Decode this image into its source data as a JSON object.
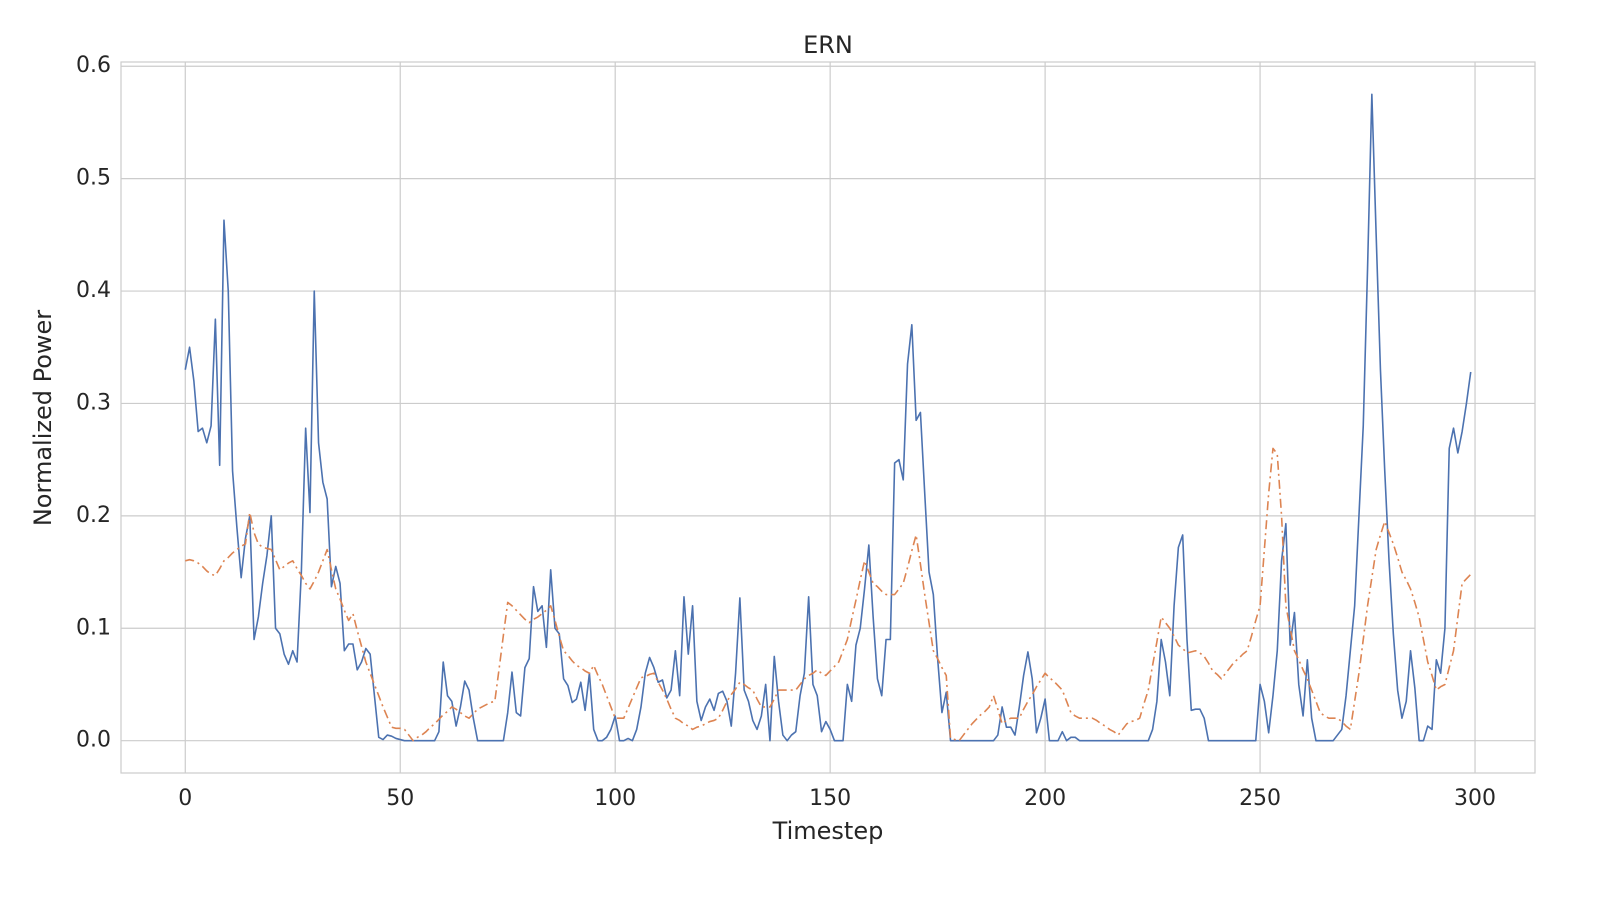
{
  "chart_data": {
    "type": "line",
    "title": "ERN",
    "x_label": "Timestep",
    "y_label": "Normalized Power",
    "x": [
      0,
      1,
      2,
      3,
      4,
      5,
      6,
      7,
      8,
      9,
      10,
      11,
      12,
      13,
      14,
      15,
      16,
      17,
      18,
      19,
      20,
      21,
      22,
      23,
      24,
      25,
      26,
      27,
      28,
      29,
      30,
      31,
      32,
      33,
      34,
      35,
      36,
      37,
      38,
      39,
      40,
      41,
      42,
      43,
      44,
      45,
      46,
      47,
      48,
      49,
      50,
      51,
      52,
      53,
      54,
      55,
      56,
      57,
      58,
      59,
      60,
      61,
      62,
      63,
      64,
      65,
      66,
      67,
      68,
      69,
      70,
      71,
      72,
      73,
      74,
      75,
      76,
      77,
      78,
      79,
      80,
      81,
      82,
      83,
      84,
      85,
      86,
      87,
      88,
      89,
      90,
      91,
      92,
      93,
      94,
      95,
      96,
      97,
      98,
      99,
      100,
      101,
      102,
      103,
      104,
      105,
      106,
      107,
      108,
      109,
      110,
      111,
      112,
      113,
      114,
      115,
      116,
      117,
      118,
      119,
      120,
      121,
      122,
      123,
      124,
      125,
      126,
      127,
      128,
      129,
      130,
      131,
      132,
      133,
      134,
      135,
      136,
      137,
      138,
      139,
      140,
      141,
      142,
      143,
      144,
      145,
      146,
      147,
      148,
      149,
      150,
      151,
      152,
      153,
      154,
      155,
      156,
      157,
      158,
      159,
      160,
      161,
      162,
      163,
      164,
      165,
      166,
      167,
      168,
      169,
      170,
      171,
      172,
      173,
      174,
      175,
      176,
      177,
      178,
      179,
      180,
      181,
      182,
      183,
      184,
      185,
      186,
      187,
      188,
      189,
      190,
      191,
      192,
      193,
      194,
      195,
      196,
      197,
      198,
      199,
      200,
      201,
      202,
      203,
      204,
      205,
      206,
      207,
      208,
      209,
      210,
      211,
      212,
      213,
      214,
      215,
      216,
      217,
      218,
      219,
      220,
      221,
      222,
      223,
      224,
      225,
      226,
      227,
      228,
      229,
      230,
      231,
      232,
      233,
      234,
      235,
      236,
      237,
      238,
      239,
      240,
      241,
      242,
      243,
      244,
      245,
      246,
      247,
      248,
      249,
      250,
      251,
      252,
      253,
      254,
      255,
      256,
      257,
      258,
      259,
      260,
      261,
      262,
      263,
      264,
      265,
      266,
      267,
      268,
      269,
      270,
      271,
      272,
      273,
      274,
      275,
      276,
      277,
      278,
      279,
      280,
      281,
      282,
      283,
      284,
      285,
      286,
      287,
      288,
      289,
      290,
      291,
      292,
      293,
      294,
      295,
      296,
      297,
      298,
      299
    ],
    "series": [
      {
        "color": "#4c72b0",
        "linestyle": "solid",
        "values": [
          0.33,
          0.35,
          0.32,
          0.275,
          0.278,
          0.265,
          0.28,
          0.375,
          0.245,
          0.463,
          0.4,
          0.24,
          0.19,
          0.145,
          0.18,
          0.2,
          0.09,
          0.11,
          0.14,
          0.165,
          0.2,
          0.1,
          0.095,
          0.077,
          0.068,
          0.08,
          0.07,
          0.15,
          0.278,
          0.203,
          0.4,
          0.265,
          0.23,
          0.215,
          0.137,
          0.155,
          0.14,
          0.08,
          0.086,
          0.086,
          0.063,
          0.07,
          0.082,
          0.077,
          0.04,
          0.003,
          0.001,
          0.005,
          0.004,
          0.002,
          0.001,
          0,
          0,
          0,
          0,
          0,
          0,
          0,
          0,
          0.008,
          0.07,
          0.04,
          0.035,
          0.013,
          0.03,
          0.053,
          0.045,
          0.02,
          0,
          0,
          0,
          0,
          0,
          0,
          0,
          0.025,
          0.061,
          0.025,
          0.022,
          0.065,
          0.073,
          0.137,
          0.115,
          0.12,
          0.083,
          0.152,
          0.1,
          0.095,
          0.055,
          0.049,
          0.034,
          0.037,
          0.052,
          0.027,
          0.06,
          0.01,
          0,
          0,
          0.003,
          0.01,
          0.022,
          0,
          0,
          0.002,
          0,
          0.01,
          0.03,
          0.06,
          0.074,
          0.065,
          0.052,
          0.054,
          0.038,
          0.045,
          0.08,
          0.04,
          0.128,
          0.077,
          0.12,
          0.035,
          0.018,
          0.03,
          0.037,
          0.027,
          0.042,
          0.044,
          0.035,
          0.013,
          0.06,
          0.127,
          0.045,
          0.035,
          0.018,
          0.01,
          0.022,
          0.05,
          0,
          0.075,
          0.035,
          0.005,
          0,
          0.005,
          0.008,
          0.04,
          0.06,
          0.128,
          0.05,
          0.04,
          0.008,
          0.017,
          0.01,
          0,
          0,
          0,
          0.05,
          0.035,
          0.085,
          0.1,
          0.135,
          0.174,
          0.11,
          0.055,
          0.04,
          0.09,
          0.09,
          0.247,
          0.25,
          0.232,
          0.335,
          0.37,
          0.285,
          0.292,
          0.22,
          0.15,
          0.13,
          0.073,
          0.025,
          0.043,
          0,
          0,
          0,
          0,
          0,
          0,
          0,
          0,
          0,
          0,
          0,
          0.005,
          0.03,
          0.012,
          0.012,
          0.005,
          0.03,
          0.058,
          0.079,
          0.055,
          0.007,
          0.02,
          0.037,
          0,
          0,
          0,
          0.008,
          0,
          0.003,
          0.003,
          0,
          0,
          0,
          0,
          0,
          0,
          0,
          0,
          0,
          0,
          0,
          0,
          0,
          0,
          0,
          0,
          0,
          0.01,
          0.035,
          0.09,
          0.07,
          0.04,
          0.12,
          0.172,
          0.183,
          0.09,
          0.027,
          0.028,
          0.028,
          0.02,
          0,
          0,
          0,
          0,
          0,
          0,
          0,
          0,
          0,
          0,
          0,
          0,
          0.05,
          0.035,
          0.007,
          0.04,
          0.08,
          0.16,
          0.193,
          0.085,
          0.114,
          0.05,
          0.022,
          0.072,
          0.02,
          0,
          0,
          0,
          0,
          0,
          0.005,
          0.01,
          0.04,
          0.08,
          0.12,
          0.2,
          0.28,
          0.42,
          0.575,
          0.45,
          0.33,
          0.24,
          0.16,
          0.095,
          0.045,
          0.02,
          0.035,
          0.08,
          0.047,
          0,
          0,
          0.013,
          0.01,
          0.072,
          0.06,
          0.1,
          0.26,
          0.278,
          0.256,
          0.275,
          0.3,
          0.328
        ]
      },
      {
        "color": "#dd8452",
        "linestyle": "dashdot",
        "values": [
          0.16,
          0.161,
          0.16,
          0.158,
          0.155,
          0.151,
          0.148,
          0.147,
          0.153,
          0.16,
          0.163,
          0.167,
          0.17,
          0.173,
          0.175,
          0.203,
          0.185,
          0.175,
          0.172,
          0.171,
          0.17,
          0.161,
          0.152,
          0.155,
          0.158,
          0.16,
          0.153,
          0.147,
          0.14,
          0.135,
          0.142,
          0.15,
          0.16,
          0.17,
          0.152,
          0.135,
          0.126,
          0.116,
          0.107,
          0.113,
          0.098,
          0.084,
          0.07,
          0.06,
          0.05,
          0.04,
          0.03,
          0.021,
          0.012,
          0.011,
          0.011,
          0.01,
          0.005,
          0,
          0.003,
          0.005,
          0.008,
          0.012,
          0.015,
          0.019,
          0.023,
          0.026,
          0.03,
          0.028,
          0.025,
          0.022,
          0.02,
          0.024,
          0.028,
          0.03,
          0.032,
          0.034,
          0.035,
          0.064,
          0.094,
          0.123,
          0.12,
          0.116,
          0.112,
          0.108,
          0.105,
          0.108,
          0.11,
          0.113,
          0.116,
          0.12,
          0.107,
          0.093,
          0.08,
          0.076,
          0.071,
          0.067,
          0.065,
          0.062,
          0.06,
          0.067,
          0.058,
          0.05,
          0.04,
          0.03,
          0.02,
          0.02,
          0.02,
          0.029,
          0.038,
          0.047,
          0.056,
          0.057,
          0.059,
          0.06,
          0.052,
          0.045,
          0.037,
          0.028,
          0.02,
          0.018,
          0.015,
          0.013,
          0.01,
          0.012,
          0.013,
          0.015,
          0.017,
          0.018,
          0.02,
          0.027,
          0.035,
          0.041,
          0.046,
          0.052,
          0.05,
          0.047,
          0.045,
          0.037,
          0.03,
          0.03,
          0.03,
          0.037,
          0.045,
          0.045,
          0.045,
          0.045,
          0.045,
          0.05,
          0.055,
          0.058,
          0.06,
          0.063,
          0.06,
          0.058,
          0.062,
          0.066,
          0.07,
          0.08,
          0.09,
          0.108,
          0.125,
          0.143,
          0.16,
          0.15,
          0.14,
          0.137,
          0.133,
          0.13,
          0.13,
          0.13,
          0.135,
          0.14,
          0.154,
          0.169,
          0.183,
          0.157,
          0.13,
          0.105,
          0.08,
          0.073,
          0.065,
          0.058,
          0.002,
          0.001,
          0,
          0.005,
          0.01,
          0.015,
          0.019,
          0.023,
          0.026,
          0.03,
          0.04,
          0.028,
          0.015,
          0.018,
          0.02,
          0.02,
          0.02,
          0.028,
          0.035,
          0.041,
          0.048,
          0.054,
          0.06,
          0.056,
          0.053,
          0.049,
          0.045,
          0.035,
          0.025,
          0.022,
          0.02,
          0.02,
          0.02,
          0.02,
          0.018,
          0.015,
          0.013,
          0.01,
          0.008,
          0.005,
          0.01,
          0.015,
          0.017,
          0.018,
          0.02,
          0.033,
          0.045,
          0.067,
          0.088,
          0.11,
          0.105,
          0.1,
          0.093,
          0.085,
          0.082,
          0.078,
          0.079,
          0.08,
          0.078,
          0.075,
          0.069,
          0.062,
          0.059,
          0.055,
          0.06,
          0.065,
          0.07,
          0.073,
          0.077,
          0.08,
          0.093,
          0.107,
          0.12,
          0.17,
          0.22,
          0.26,
          0.255,
          0.2,
          0.12,
          0.1,
          0.08,
          0.072,
          0.063,
          0.055,
          0.045,
          0.035,
          0.025,
          0.022,
          0.02,
          0.02,
          0.02,
          0.017,
          0.013,
          0.01,
          0.035,
          0.06,
          0.09,
          0.12,
          0.145,
          0.17,
          0.183,
          0.195,
          0.185,
          0.175,
          0.163,
          0.15,
          0.143,
          0.135,
          0.123,
          0.11,
          0.09,
          0.07,
          0.058,
          0.045,
          0.048,
          0.05,
          0.065,
          0.08,
          0.11,
          0.14,
          0.144,
          0.148
        ]
      }
    ],
    "xlim": [
      -14.95,
      313.95
    ],
    "xticks": [
      0,
      50,
      100,
      150,
      200,
      250,
      300
    ],
    "ylim": [
      -0.02875,
      0.60375
    ],
    "yticks": [
      {
        "value": 0,
        "label": "0.0"
      },
      0.1,
      0.2,
      0.3,
      0.4,
      0.5,
      0.6
    ],
    "grid": true
  }
}
